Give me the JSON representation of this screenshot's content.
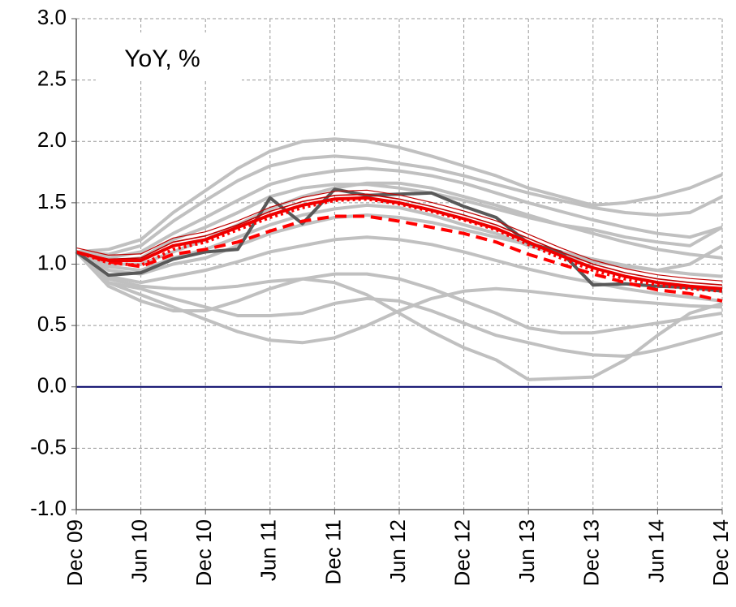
{
  "chart_data": {
    "type": "line",
    "title": "YoY, %",
    "categories": [
      "Dec 09",
      null,
      "Jun 10",
      null,
      "Dec 10",
      null,
      "Jun 11",
      null,
      "Dec 11",
      null,
      "Jun 12",
      null,
      "Dec 12",
      null,
      "Jun 13",
      null,
      "Dec 13",
      null,
      "Jun 14",
      null,
      "Dec 14"
    ],
    "ylim": [
      -1,
      3
    ],
    "yticks": [
      {
        "value": -1,
        "label": "-1.0"
      },
      -0.5,
      {
        "value": 0,
        "label": "0.0"
      },
      0.5,
      {
        "value": 1,
        "label": "1.0"
      },
      1.5,
      {
        "value": 2,
        "label": "2.0"
      },
      2.5,
      {
        "value": 3,
        "label": "3.0"
      }
    ],
    "grid": true,
    "series": [
      {
        "color": "#c0c0c0",
        "style": "thick",
        "values": [
          1.1,
          1.12,
          1.2,
          1.42,
          1.6,
          1.78,
          1.92,
          2.0,
          2.02,
          2.0,
          1.95,
          1.88,
          1.8,
          1.72,
          1.62,
          1.55,
          1.48,
          1.5,
          1.55,
          1.62,
          1.73
        ]
      },
      {
        "color": "#c0c0c0",
        "style": "thick",
        "values": [
          1.1,
          1.08,
          1.15,
          1.35,
          1.52,
          1.68,
          1.8,
          1.86,
          1.88,
          1.86,
          1.82,
          1.78,
          1.72,
          1.65,
          1.58,
          1.52,
          1.46,
          1.42,
          1.4,
          1.42,
          1.55
        ]
      },
      {
        "color": "#c0c0c0",
        "style": "thick",
        "values": [
          1.1,
          1.05,
          1.1,
          1.25,
          1.38,
          1.52,
          1.65,
          1.72,
          1.76,
          1.78,
          1.76,
          1.72,
          1.66,
          1.58,
          1.5,
          1.43,
          1.36,
          1.3,
          1.25,
          1.22,
          1.3
        ]
      },
      {
        "color": "#c0c0c0",
        "style": "thick",
        "values": [
          1.1,
          1.0,
          1.0,
          1.1,
          1.2,
          1.32,
          1.45,
          1.55,
          1.62,
          1.66,
          1.66,
          1.62,
          1.55,
          1.48,
          1.4,
          1.32,
          1.25,
          1.18,
          1.12,
          1.08,
          1.05
        ]
      },
      {
        "color": "#c0c0c0",
        "style": "thick",
        "values": [
          1.1,
          0.95,
          0.92,
          1.0,
          1.05,
          1.15,
          1.25,
          1.32,
          1.38,
          1.4,
          1.38,
          1.34,
          1.28,
          1.22,
          1.16,
          1.1,
          1.04,
          0.99,
          0.95,
          0.92,
          0.9
        ]
      },
      {
        "color": "#c0c0c0",
        "style": "thick",
        "values": [
          1.1,
          0.9,
          0.85,
          0.9,
          0.95,
          1.02,
          1.1,
          1.15,
          1.2,
          1.22,
          1.2,
          1.16,
          1.1,
          1.03,
          0.96,
          0.9,
          0.85,
          0.8,
          0.76,
          0.73,
          0.7
        ]
      },
      {
        "color": "#c0c0c0",
        "style": "thick",
        "values": [
          1.1,
          0.85,
          0.75,
          0.65,
          0.55,
          0.45,
          0.38,
          0.36,
          0.4,
          0.5,
          0.62,
          0.72,
          0.78,
          0.8,
          0.78,
          0.75,
          0.72,
          0.7,
          0.68,
          0.66,
          0.65
        ]
      },
      {
        "color": "#c0c0c0",
        "style": "thick",
        "values": [
          1.1,
          0.85,
          0.8,
          0.72,
          0.65,
          0.58,
          0.58,
          0.6,
          0.68,
          0.72,
          0.7,
          0.62,
          0.52,
          0.42,
          0.36,
          0.3,
          0.26,
          0.25,
          0.3,
          0.37,
          0.44
        ]
      },
      {
        "color": "#c0c0c0",
        "style": "thick",
        "values": [
          1.1,
          0.88,
          0.82,
          0.8,
          0.8,
          0.82,
          0.86,
          0.88,
          0.85,
          0.75,
          0.6,
          0.45,
          0.32,
          0.22,
          0.06,
          0.07,
          0.08,
          0.22,
          0.42,
          0.6,
          0.68
        ]
      },
      {
        "color": "#c0c0c0",
        "style": "thick",
        "values": [
          1.1,
          0.82,
          0.7,
          0.62,
          0.62,
          0.7,
          0.8,
          0.88,
          0.92,
          0.92,
          0.88,
          0.8,
          0.7,
          0.6,
          0.48,
          0.44,
          0.44,
          0.48,
          0.52,
          0.56,
          0.6
        ]
      },
      {
        "color": "#c0c0c0",
        "style": "thick",
        "values": [
          1.1,
          1.02,
          1.05,
          1.2,
          1.3,
          1.42,
          1.55,
          1.62,
          1.65,
          1.65,
          1.62,
          1.58,
          1.52,
          1.45,
          1.38,
          1.32,
          1.28,
          1.22,
          1.18,
          1.15,
          1.3
        ]
      },
      {
        "color": "#c0c0c0",
        "style": "thick",
        "values": [
          1.1,
          0.98,
          0.95,
          1.05,
          1.12,
          1.22,
          1.32,
          1.4,
          1.45,
          1.48,
          1.46,
          1.4,
          1.32,
          1.25,
          1.15,
          1.08,
          1.02,
          0.98,
          0.95,
          1.0,
          1.15
        ]
      },
      {
        "color": "#595959",
        "style": "thick",
        "values": [
          1.1,
          0.91,
          0.93,
          1.04,
          1.1,
          1.12,
          1.54,
          1.33,
          1.61,
          1.56,
          1.57,
          1.58,
          1.47,
          1.38,
          1.17,
          1.1,
          0.83,
          0.84,
          0.82,
          0.81,
          0.78
        ]
      },
      {
        "color": "#c00000",
        "style": "thin",
        "values": [
          1.1,
          1.04,
          1.05,
          1.18,
          1.23,
          1.32,
          1.43,
          1.51,
          1.56,
          1.57,
          1.53,
          1.47,
          1.4,
          1.32,
          1.21,
          1.1,
          1.0,
          0.93,
          0.88,
          0.85,
          0.83
        ]
      },
      {
        "color": "#ff0000",
        "style": "dotted",
        "values": [
          1.1,
          1.01,
          0.99,
          1.12,
          1.18,
          1.28,
          1.38,
          1.46,
          1.52,
          1.53,
          1.49,
          1.43,
          1.36,
          1.28,
          1.16,
          1.05,
          0.95,
          0.88,
          0.83,
          0.8,
          0.78
        ]
      },
      {
        "color": "#ff0000",
        "style": "dashed",
        "values": [
          1.1,
          1.02,
          0.98,
          1.08,
          1.12,
          1.18,
          1.27,
          1.35,
          1.39,
          1.39,
          1.35,
          1.3,
          1.25,
          1.18,
          1.08,
          1.0,
          0.92,
          0.85,
          0.79,
          0.76,
          0.7
        ]
      },
      {
        "color": "#ee0000",
        "style": "solid",
        "values": [
          1.1,
          1.03,
          1.03,
          1.15,
          1.2,
          1.3,
          1.4,
          1.48,
          1.53,
          1.54,
          1.5,
          1.44,
          1.37,
          1.29,
          1.18,
          1.07,
          0.97,
          0.9,
          0.85,
          0.82,
          0.8
        ]
      }
    ]
  }
}
